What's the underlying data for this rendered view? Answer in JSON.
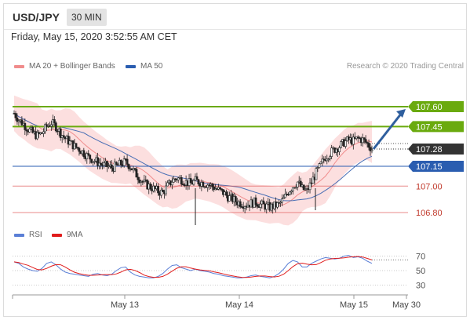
{
  "header": {
    "symbol": "USD/JPY",
    "timeframe": "30 MIN"
  },
  "date_line": "Friday, May 15, 2020 3:52:55 AM CET",
  "legend": {
    "ma_bb": "MA 20 + Bollinger Bands",
    "ma50": "MA 50",
    "rsi": "RSI",
    "nine_ma": "9MA"
  },
  "credit": "Research © 2020 Trading Central",
  "colors": {
    "resistance": "#6aaa0e",
    "current_price_bg": "#333333",
    "pivot": "#2a5db0",
    "support": "#e05a5a",
    "band_fill": "#fbd4d4",
    "ma20": "#f08c8c",
    "ma50": "#4a6fb5",
    "rsi": "#5b7fd6",
    "rsi_ma": "#e01c1c",
    "arrow": "#2f5f9e"
  },
  "chart_data": {
    "type": "candlestick",
    "instrument": "USD/JPY",
    "timeframe": "30 MIN",
    "x_tick_labels": [
      "May 13",
      "May 14",
      "May 15",
      "May 30"
    ],
    "levels": [
      {
        "label": "107.60",
        "value": 107.6,
        "kind": "resistance"
      },
      {
        "label": "107.45",
        "value": 107.45,
        "kind": "resistance"
      },
      {
        "label": "107.28",
        "value": 107.28,
        "kind": "current"
      },
      {
        "label": "107.15",
        "value": 107.15,
        "kind": "pivot"
      },
      {
        "label": "107.00",
        "value": 107.0,
        "kind": "support"
      },
      {
        "label": "106.80",
        "value": 106.8,
        "kind": "support"
      }
    ],
    "projection": {
      "from": 107.28,
      "to": 107.6
    },
    "close_path": [
      107.55,
      107.5,
      107.47,
      107.43,
      107.4,
      107.38,
      107.4,
      107.45,
      107.48,
      107.45,
      107.4,
      107.36,
      107.33,
      107.3,
      107.28,
      107.25,
      107.22,
      107.2,
      107.18,
      107.16,
      107.15,
      107.14,
      107.15,
      107.17,
      107.18,
      107.15,
      107.1,
      107.06,
      107.02,
      107.0,
      106.98,
      106.96,
      106.95,
      107.0,
      107.04,
      107.06,
      107.05,
      107.03,
      107.02,
      107.04,
      107.03,
      107.02,
      107.01,
      106.99,
      106.97,
      106.95,
      106.92,
      106.9,
      106.88,
      106.87,
      106.86,
      106.87,
      106.88,
      106.86,
      106.85,
      106.84,
      106.85,
      106.86,
      106.9,
      106.96,
      107.0,
      107.03,
      106.98,
      106.96,
      107.03,
      107.1,
      107.16,
      107.22,
      107.25,
      107.28,
      107.3,
      107.33,
      107.35,
      107.34,
      107.36,
      107.35,
      107.32,
      107.28
    ],
    "rsi": {
      "levels": [
        70,
        50,
        30
      ],
      "values": [
        62,
        60,
        55,
        52,
        50,
        49,
        53,
        60,
        62,
        58,
        52,
        48,
        46,
        45,
        44,
        43,
        42,
        45,
        46,
        44,
        43,
        45,
        50,
        54,
        55,
        48,
        44,
        42,
        41,
        40,
        40,
        42,
        46,
        52,
        57,
        58,
        54,
        52,
        50,
        52,
        50,
        49,
        48,
        46,
        45,
        43,
        42,
        41,
        40,
        40,
        41,
        43,
        44,
        42,
        41,
        40,
        42,
        46,
        52,
        60,
        64,
        62,
        55,
        55,
        60,
        63,
        66,
        68,
        67,
        66,
        67,
        70,
        71,
        68,
        69,
        67,
        63,
        60
      ]
    }
  }
}
